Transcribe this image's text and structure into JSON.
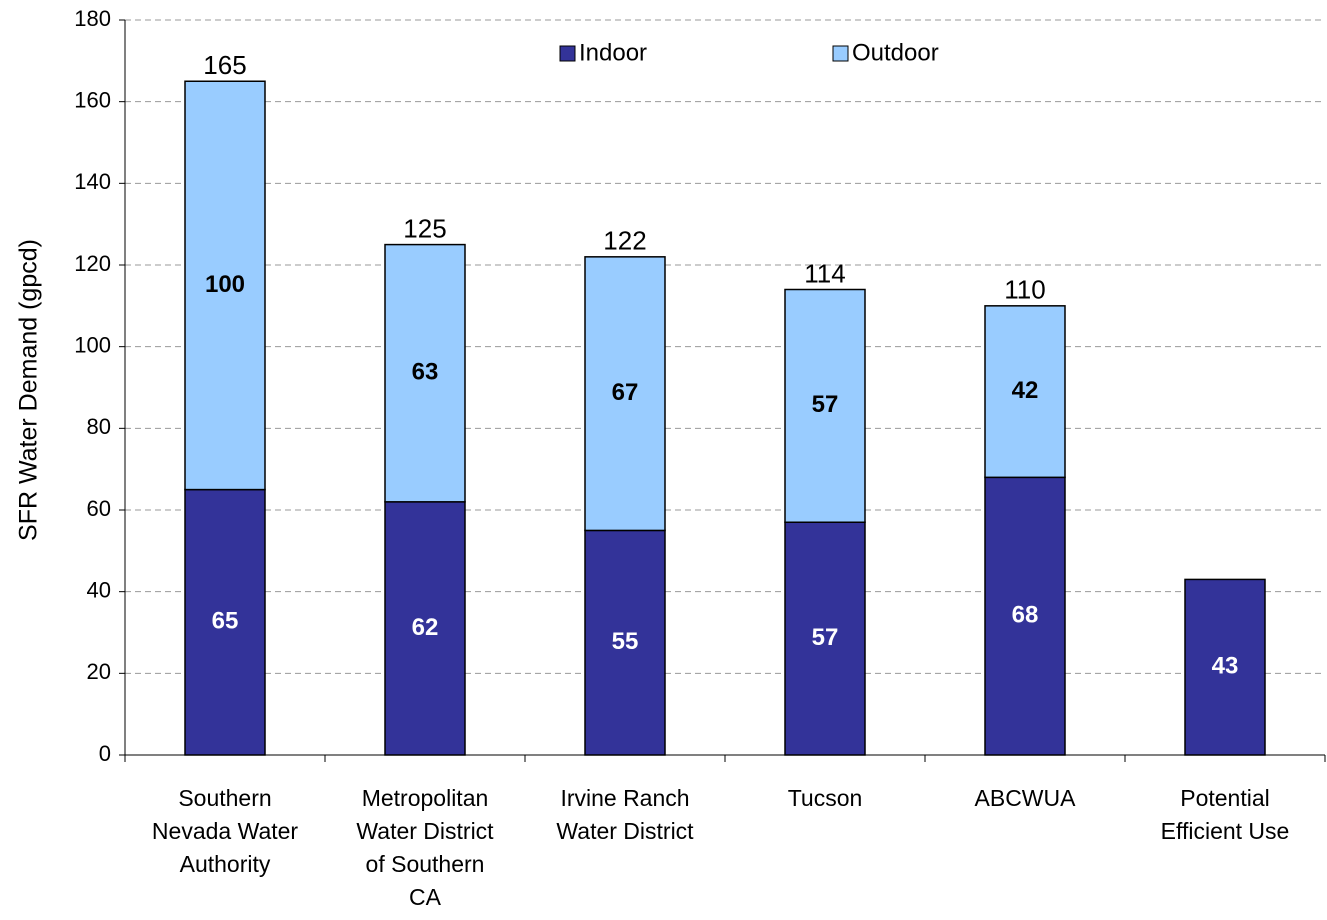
{
  "chart_data": {
    "type": "stacked_bar",
    "y_label": "SFR Water Demand (gpcd)",
    "categories": [
      [
        "Southern",
        "Nevada Water",
        "Authority"
      ],
      [
        "Metropolitan",
        "Water District",
        "of Southern",
        "CA"
      ],
      [
        "Irvine Ranch",
        "Water District"
      ],
      [
        "Tucson"
      ],
      [
        "ABCWUA"
      ],
      [
        "Potential",
        "Efficient Use"
      ]
    ],
    "series": [
      {
        "name": "Indoor",
        "color": "#333399",
        "label_color": "#ffffff",
        "values": [
          65,
          62,
          55,
          57,
          68,
          43
        ]
      },
      {
        "name": "Outdoor",
        "color": "#99ccff",
        "label_color": "#000000",
        "values": [
          100,
          63,
          67,
          57,
          42,
          null
        ]
      }
    ],
    "totals": [
      165,
      125,
      122,
      114,
      110,
      null
    ],
    "ylim": [
      0,
      180
    ],
    "yticks": [
      0,
      20,
      40,
      60,
      80,
      100,
      120,
      140,
      160,
      180
    ],
    "grid": true,
    "legend": "top"
  }
}
